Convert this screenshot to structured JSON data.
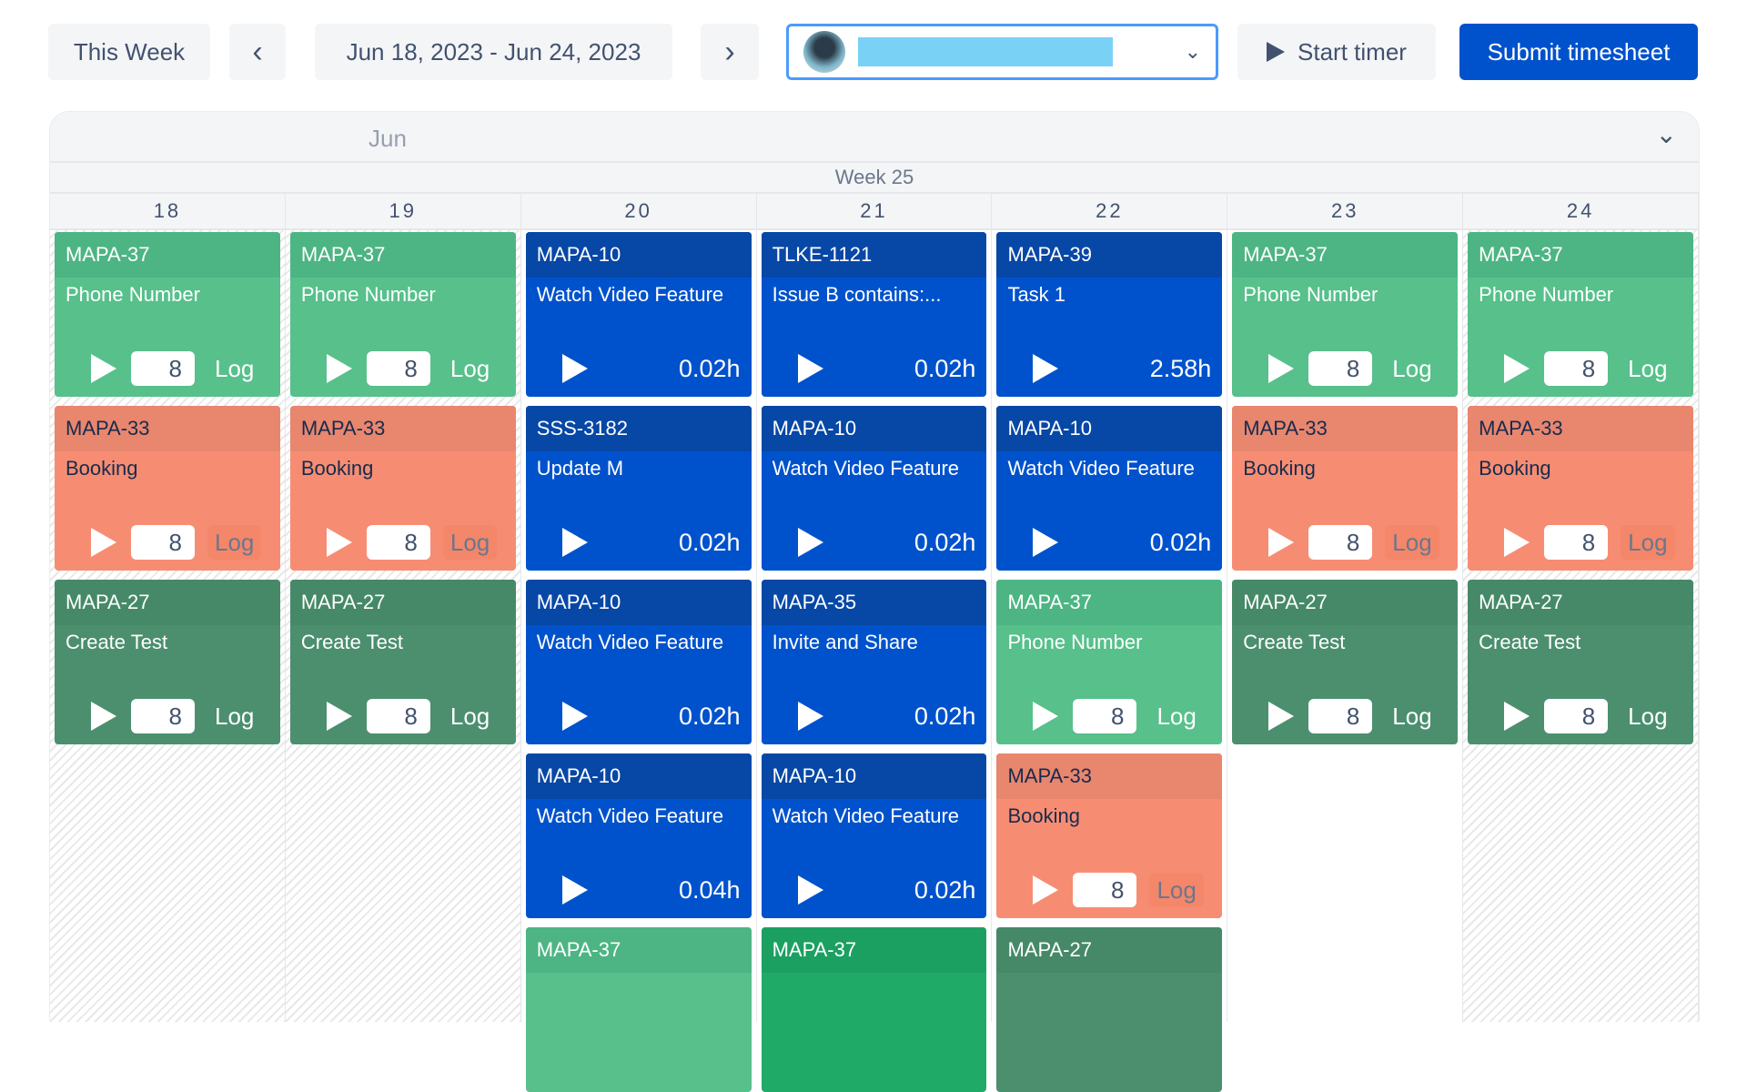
{
  "toolbar": {
    "this_week": "This Week",
    "prev_icon": "‹",
    "date_range": "Jun 18, 2023 - Jun 24, 2023",
    "next_icon": "›",
    "user_select_chevron": "⌄",
    "start_timer": "Start timer",
    "submit": "Submit timesheet"
  },
  "calendar": {
    "month": "Jun",
    "week": "Week 25",
    "collapse_icon": "⌄",
    "days": [
      "18",
      "19",
      "20",
      "21",
      "22",
      "23",
      "24"
    ],
    "columns": [
      {
        "bg": "striped",
        "cards": [
          {
            "type": "lg",
            "key": "MAPA-37",
            "title": "Phone Number",
            "value": "8",
            "log": "Log"
          },
          {
            "type": "sa",
            "key": "MAPA-33",
            "title": "Booking",
            "value": "8",
            "log": "Log"
          },
          {
            "type": "dg",
            "key": "MAPA-27",
            "title": "Create Test",
            "value": "8",
            "log": "Log"
          }
        ]
      },
      {
        "bg": "striped",
        "cards": [
          {
            "type": "lg",
            "key": "MAPA-37",
            "title": "Phone Number",
            "value": "8",
            "log": "Log"
          },
          {
            "type": "sa",
            "key": "MAPA-33",
            "title": "Booking",
            "value": "8",
            "log": "Log"
          },
          {
            "type": "dg",
            "key": "MAPA-27",
            "title": "Create Test",
            "value": "8",
            "log": "Log"
          }
        ]
      },
      {
        "bg": "plain",
        "cards": [
          {
            "type": "bl",
            "key": "MAPA-10",
            "title": "Watch Video Feature",
            "hours": "0.02h"
          },
          {
            "type": "bl",
            "key": "SSS-3182",
            "title": "Update M",
            "hours": "0.02h"
          },
          {
            "type": "bl",
            "key": "MAPA-10",
            "title": "Watch Video Feature",
            "hours": "0.02h"
          },
          {
            "type": "bl",
            "key": "MAPA-10",
            "title": "Watch Video Feature",
            "hours": "0.04h"
          },
          {
            "type": "lg",
            "key": "MAPA-37",
            "title": ""
          }
        ]
      },
      {
        "bg": "plain",
        "cards": [
          {
            "type": "bl",
            "key": "TLKE-1121",
            "title": "Issue B contains:...",
            "hours": "0.02h"
          },
          {
            "type": "bl",
            "key": "MAPA-10",
            "title": "Watch Video Feature",
            "hours": "0.02h"
          },
          {
            "type": "bl",
            "key": "MAPA-35",
            "title": "Invite and Share",
            "hours": "0.02h"
          },
          {
            "type": "bl",
            "key": "MAPA-10",
            "title": "Watch Video Feature",
            "hours": "0.02h"
          },
          {
            "type": "bg",
            "key": "MAPA-37",
            "title": ""
          }
        ]
      },
      {
        "bg": "plain",
        "cards": [
          {
            "type": "bl",
            "key": "MAPA-39",
            "title": "Task 1",
            "hours": "2.58h"
          },
          {
            "type": "bl",
            "key": "MAPA-10",
            "title": "Watch Video Feature",
            "hours": "0.02h"
          },
          {
            "type": "lg",
            "key": "MAPA-37",
            "title": "Phone Number",
            "value": "8",
            "log": "Log"
          },
          {
            "type": "sa",
            "key": "MAPA-33",
            "title": "Booking",
            "value": "8",
            "log": "Log"
          },
          {
            "type": "dg",
            "key": "MAPA-27",
            "title": ""
          }
        ]
      },
      {
        "bg": "plain",
        "cards": [
          {
            "type": "lg",
            "key": "MAPA-37",
            "title": "Phone Number",
            "value": "8",
            "log": "Log"
          },
          {
            "type": "sa",
            "key": "MAPA-33",
            "title": "Booking",
            "value": "8",
            "log": "Log"
          },
          {
            "type": "dg",
            "key": "MAPA-27",
            "title": "Create Test",
            "value": "8",
            "log": "Log"
          }
        ]
      },
      {
        "bg": "striped",
        "cards": [
          {
            "type": "lg",
            "key": "MAPA-37",
            "title": "Phone Number",
            "value": "8",
            "log": "Log"
          },
          {
            "type": "sa",
            "key": "MAPA-33",
            "title": "Booking",
            "value": "8",
            "log": "Log"
          },
          {
            "type": "dg",
            "key": "MAPA-27",
            "title": "Create Test",
            "value": "8",
            "log": "Log"
          }
        ]
      }
    ]
  }
}
